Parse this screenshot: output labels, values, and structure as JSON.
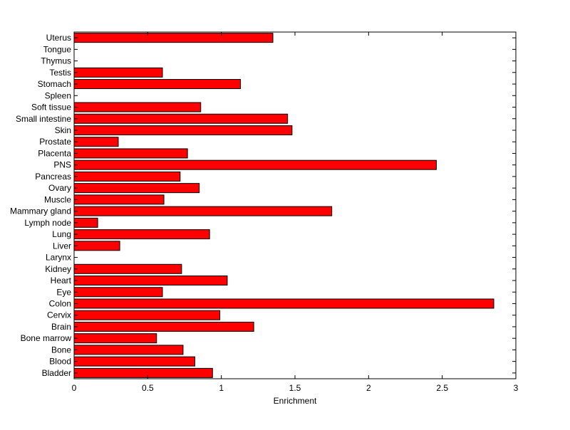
{
  "chart_data": {
    "type": "bar",
    "orientation": "horizontal",
    "title": "",
    "xlabel": "Enrichment",
    "ylabel": "",
    "xlim": [
      0,
      3
    ],
    "xticks": [
      0,
      0.5,
      1,
      1.5,
      2,
      2.5,
      3
    ],
    "xtick_labels": [
      "0",
      "0.5",
      "1",
      "1.5",
      "2",
      "2.5",
      "3"
    ],
    "grid": false,
    "legend": "none",
    "bar_color": "#ff0000",
    "bar_edge_color": "#000000",
    "categories": [
      "Bladder",
      "Blood",
      "Bone",
      "Bone marrow",
      "Brain",
      "Cervix",
      "Colon",
      "Eye",
      "Heart",
      "Kidney",
      "Larynx",
      "Liver",
      "Lung",
      "Lymph node",
      "Mammary gland",
      "Muscle",
      "Ovary",
      "Pancreas",
      "PNS",
      "Placenta",
      "Prostate",
      "Skin",
      "Small intestine",
      "Soft tissue",
      "Spleen",
      "Stomach",
      "Testis",
      "Thymus",
      "Tongue",
      "Uterus"
    ],
    "values": [
      0.94,
      0.82,
      0.74,
      0.56,
      1.22,
      0.99,
      2.85,
      0.6,
      1.04,
      0.73,
      0,
      0.31,
      0.92,
      0.16,
      1.75,
      0.61,
      0.85,
      0.72,
      2.46,
      0.77,
      0.3,
      1.48,
      1.45,
      0.86,
      0,
      1.13,
      0.6,
      0,
      0,
      1.35
    ]
  }
}
